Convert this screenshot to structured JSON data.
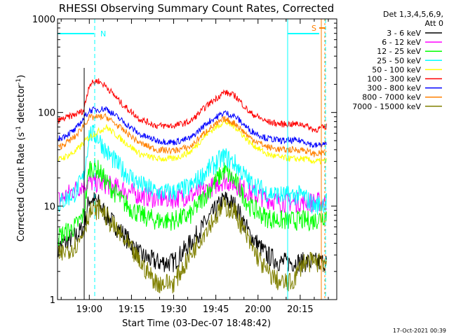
{
  "chart_data": {
    "type": "line",
    "title": "RHESSI Observing Summary Count Rates, Corrected",
    "xlabel": "Start Time (03-Dec-07 18:48:42)",
    "ylabel": "Corrected Count Rate (s⁻¹ detector⁻¹)",
    "ylabel_parts": [
      "Corrected Count Rate (s",
      "-1",
      " detector",
      "-1",
      ")"
    ],
    "y_scale": "log",
    "ylim": [
      1,
      1000
    ],
    "xlim": [
      "18:48:42",
      "20:28:00"
    ],
    "x_ticks": [
      "19:00",
      "19:15",
      "19:30",
      "19:45",
      "20:00",
      "20:15"
    ],
    "y_ticks": [
      "1",
      "10",
      "100",
      "1000"
    ],
    "legend_header": [
      "Det 1,3,4,5,6,9,",
      "Att 0"
    ],
    "legend_position": "right",
    "series": [
      {
        "name": "3 - 6 keV",
        "color": "#000000",
        "x": [
          "18:48",
          "18:56",
          "18:58",
          "19:00",
          "19:03",
          "19:06",
          "19:12",
          "19:18",
          "19:24",
          "19:30",
          "19:36",
          "19:42",
          "19:48",
          "19:52",
          "19:57",
          "20:03",
          "20:08",
          "20:12",
          "20:16",
          "20:20",
          "20:24",
          "20:26"
        ],
        "values": [
          3.5,
          5,
          6,
          12,
          11,
          8,
          5,
          3,
          2.5,
          2.5,
          4,
          7,
          12,
          10,
          5,
          3,
          2.5,
          2.5,
          2.5,
          2.5,
          2.5,
          2.5
        ]
      },
      {
        "name": "6 - 12 keV",
        "color": "#ff00ff",
        "x": [
          "18:48",
          "18:55",
          "18:58",
          "19:00",
          "19:06",
          "19:12",
          "19:18",
          "19:24",
          "19:30",
          "19:36",
          "19:42",
          "19:48",
          "19:52",
          "19:57",
          "20:03",
          "20:08",
          "20:12",
          "20:16",
          "20:20",
          "20:24",
          "20:26"
        ],
        "values": [
          11,
          15,
          17,
          18,
          17,
          15,
          13,
          12,
          12,
          13,
          15,
          19,
          17,
          14,
          12,
          11,
          11,
          11,
          11,
          11,
          12
        ]
      },
      {
        "name": "12 - 25 keV",
        "color": "#00ff00",
        "x": [
          "18:48",
          "18:55",
          "18:58",
          "19:00",
          "19:03",
          "19:06",
          "19:12",
          "19:18",
          "19:24",
          "19:30",
          "19:36",
          "19:42",
          "19:48",
          "19:52",
          "19:57",
          "20:03",
          "20:08",
          "20:12",
          "20:16",
          "20:20",
          "20:24",
          "20:26"
        ],
        "values": [
          4.5,
          6,
          8,
          26,
          25,
          18,
          11,
          8,
          7,
          7,
          8,
          14,
          24,
          18,
          10,
          7.5,
          7,
          7,
          7,
          7,
          8,
          9
        ]
      },
      {
        "name": "25 - 50 keV",
        "color": "#00ffff",
        "x": [
          "18:48",
          "18:55",
          "18:58",
          "19:00",
          "19:03",
          "19:06",
          "19:12",
          "19:18",
          "19:24",
          "19:30",
          "19:36",
          "19:42",
          "19:48",
          "19:52",
          "19:57",
          "20:03",
          "20:08",
          "20:12",
          "20:16",
          "20:20",
          "20:24",
          "20:26"
        ],
        "values": [
          10,
          14,
          20,
          60,
          55,
          38,
          24,
          17,
          14,
          14,
          16,
          24,
          34,
          28,
          18,
          14,
          13,
          13,
          13,
          10,
          11,
          13
        ]
      },
      {
        "name": "50 - 100 keV",
        "color": "#ffff00",
        "x": [
          "18:48",
          "18:55",
          "19:00",
          "19:06",
          "19:12",
          "19:18",
          "19:24",
          "19:30",
          "19:36",
          "19:42",
          "19:48",
          "19:52",
          "19:57",
          "20:03",
          "20:08",
          "20:12",
          "20:16",
          "20:20",
          "20:24",
          "20:26"
        ],
        "values": [
          30,
          38,
          55,
          70,
          50,
          36,
          32,
          32,
          38,
          60,
          80,
          70,
          48,
          36,
          33,
          32,
          32,
          30,
          30,
          33
        ]
      },
      {
        "name": "100 - 300 keV",
        "color": "#ff0000",
        "x": [
          "18:48",
          "18:55",
          "18:58",
          "19:00",
          "19:03",
          "19:06",
          "19:12",
          "19:18",
          "19:24",
          "19:30",
          "19:36",
          "19:42",
          "19:48",
          "19:52",
          "19:57",
          "20:03",
          "20:08",
          "20:12",
          "20:16",
          "20:20",
          "20:24",
          "20:26"
        ],
        "values": [
          80,
          95,
          105,
          200,
          220,
          190,
          120,
          85,
          72,
          72,
          80,
          120,
          165,
          150,
          100,
          80,
          75,
          75,
          75,
          65,
          70,
          85
        ]
      },
      {
        "name": "300 - 800 keV",
        "color": "#0000ff",
        "x": [
          "18:48",
          "18:55",
          "19:00",
          "19:06",
          "19:12",
          "19:18",
          "19:24",
          "19:30",
          "19:36",
          "19:42",
          "19:48",
          "19:52",
          "19:57",
          "20:03",
          "20:08",
          "20:12",
          "20:16",
          "20:20",
          "20:24",
          "20:26"
        ],
        "values": [
          50,
          65,
          105,
          110,
          80,
          58,
          50,
          48,
          53,
          78,
          100,
          90,
          65,
          53,
          50,
          50,
          50,
          44,
          46,
          52
        ]
      },
      {
        "name": "800 - 7000 keV",
        "color": "#ff8000",
        "x": [
          "18:48",
          "18:55",
          "19:00",
          "19:06",
          "19:12",
          "19:18",
          "19:24",
          "19:30",
          "19:36",
          "19:42",
          "19:48",
          "19:52",
          "19:57",
          "20:03",
          "20:08",
          "20:12",
          "20:16",
          "20:20",
          "20:24",
          "20:26"
        ],
        "values": [
          40,
          55,
          88,
          90,
          65,
          47,
          40,
          39,
          43,
          65,
          85,
          76,
          54,
          43,
          40,
          40,
          40,
          36,
          37,
          42
        ]
      },
      {
        "name": "7000 - 15000 keV",
        "color": "#808000",
        "x": [
          "18:48",
          "18:56",
          "18:58",
          "19:00",
          "19:04",
          "19:07",
          "19:12",
          "19:18",
          "19:24",
          "19:30",
          "19:36",
          "19:42",
          "19:48",
          "19:52",
          "19:57",
          "20:03",
          "20:08",
          "20:12",
          "20:16",
          "20:20",
          "20:24",
          "20:26"
        ],
        "values": [
          2.8,
          4,
          5.5,
          8.5,
          9.5,
          7,
          4.5,
          2.5,
          1.5,
          1.5,
          3,
          6,
          10,
          8.5,
          4,
          2,
          1.5,
          1.5,
          2.5,
          2.5,
          2.5,
          3
        ]
      }
    ],
    "annotations": [
      {
        "text": "N",
        "color": "#00ffff"
      },
      {
        "text": "S",
        "color": "#ff8000"
      }
    ],
    "footer": "17-Oct-2021 00:39"
  }
}
